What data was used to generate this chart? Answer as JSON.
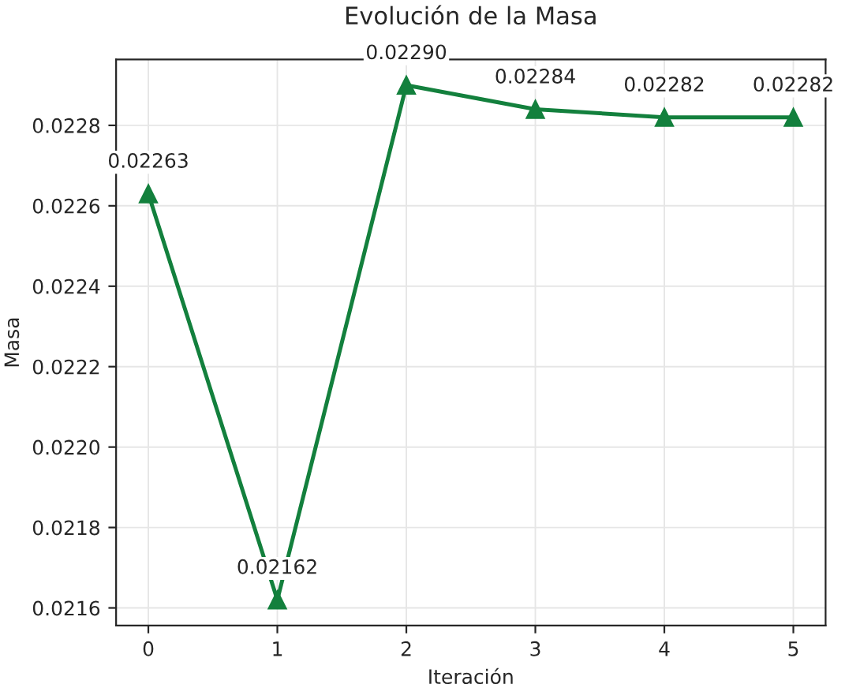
{
  "chart_data": {
    "type": "line",
    "title": "Evolución de la Masa",
    "xlabel": "Iteración",
    "ylabel": "Masa",
    "x": [
      0,
      1,
      2,
      3,
      4,
      5
    ],
    "series": [
      {
        "color": "#13803d",
        "values": [
          0.02263,
          0.02162,
          0.0229,
          0.02284,
          0.02282,
          0.02282
        ]
      }
    ],
    "value_labels": [
      "0.02263",
      "0.02162",
      "0.02290",
      "0.02284",
      "0.02282",
      "0.02282"
    ],
    "xlim": [
      -0.25,
      5.25
    ],
    "xticks": [
      0,
      1,
      2,
      3,
      4,
      5
    ],
    "ylim": [
      0.021556,
      0.022964
    ],
    "yticks": [
      {
        "value": 0.0216,
        "label": "0.0216"
      },
      {
        "value": 0.0218,
        "label": "0.0218"
      },
      {
        "value": 0.022,
        "label": "0.0220"
      },
      {
        "value": 0.0222,
        "label": "0.0222"
      },
      {
        "value": 0.0224,
        "label": "0.0224"
      },
      {
        "value": 0.0226,
        "label": "0.0226"
      },
      {
        "value": 0.0228,
        "label": "0.0228"
      }
    ],
    "grid": true,
    "marker": "triangle",
    "line_style": "solid"
  }
}
